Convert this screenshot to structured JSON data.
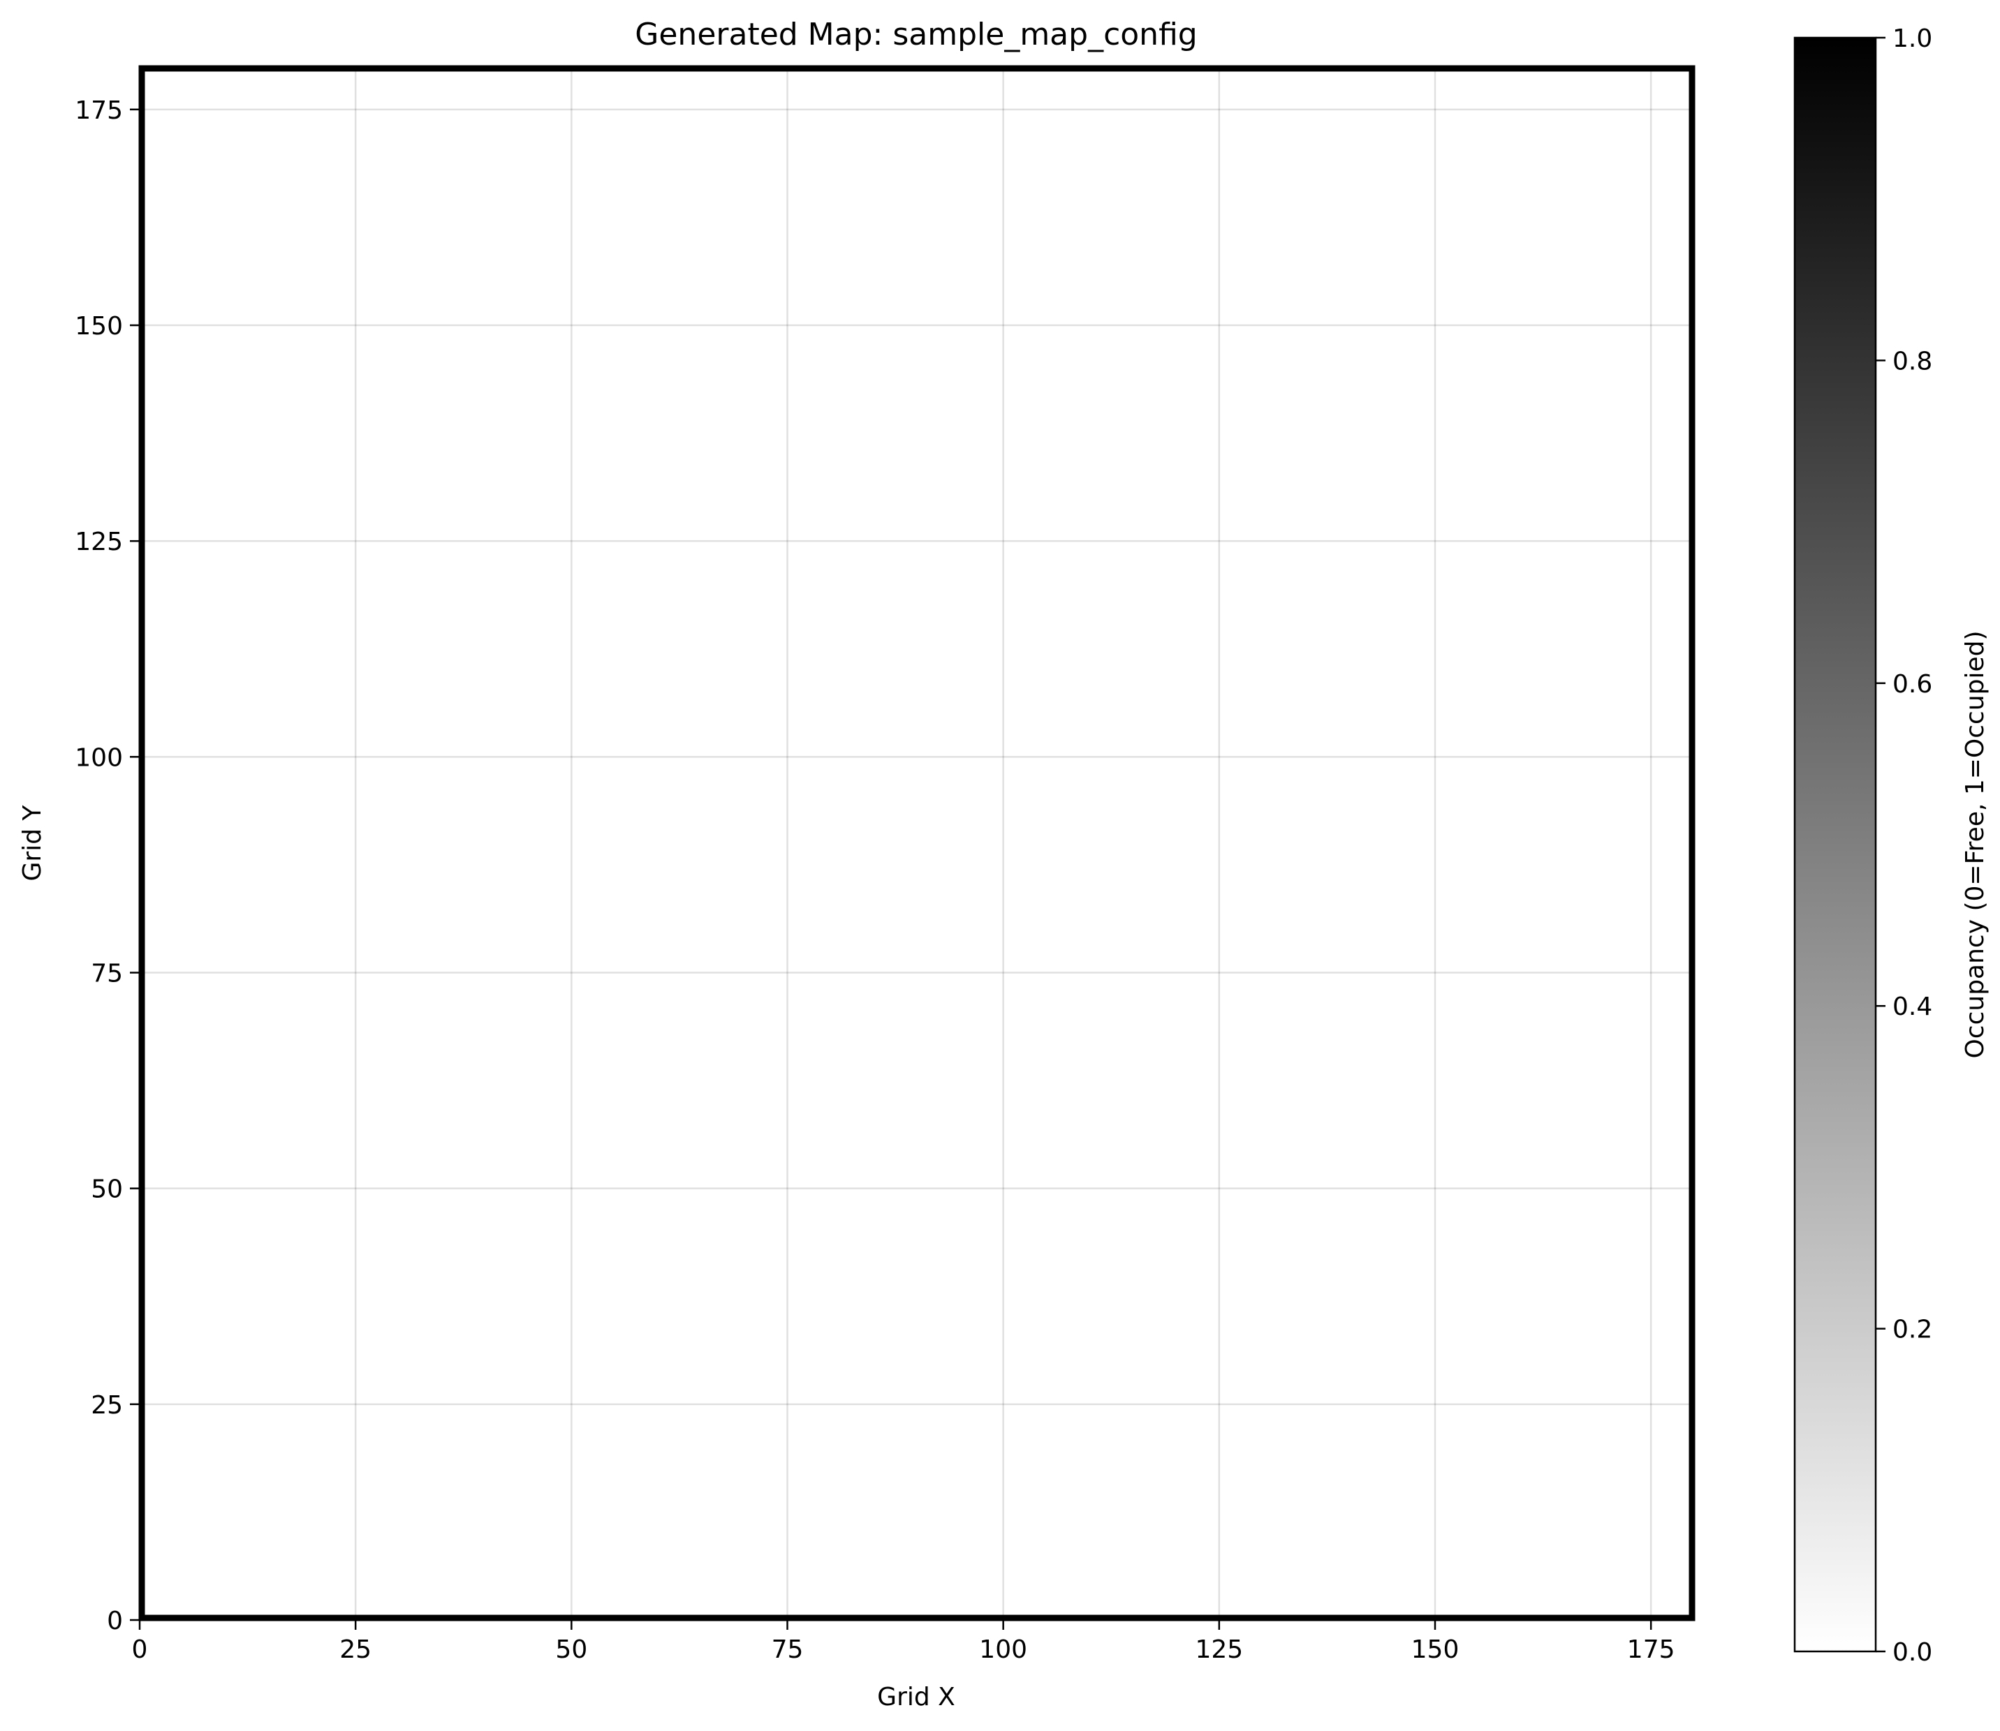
{
  "chart_data": {
    "type": "heatmap",
    "title": "Generated Map: sample_map_config",
    "xlabel": "Grid X",
    "ylabel": "Grid Y",
    "xlim": [
      0,
      180
    ],
    "ylim": [
      0,
      180
    ],
    "xticks": [
      0,
      25,
      50,
      75,
      100,
      125,
      150,
      175
    ],
    "yticks": [
      0,
      25,
      50,
      75,
      100,
      125,
      150,
      175
    ],
    "grid": true,
    "map": {
      "description_values": "occupancy grid",
      "interior_occupancy": 0,
      "border_occupancy": 1
    },
    "colorbar": {
      "label": "Occupancy (0=Free, 1=Occupied)",
      "range": [
        0,
        1
      ],
      "ticks": [
        "0.0",
        "0.2",
        "0.4",
        "0.6",
        "0.8",
        "1.0"
      ],
      "colormap": "gray_r",
      "color_low": "#ffffff",
      "color_high": "#000000"
    }
  }
}
